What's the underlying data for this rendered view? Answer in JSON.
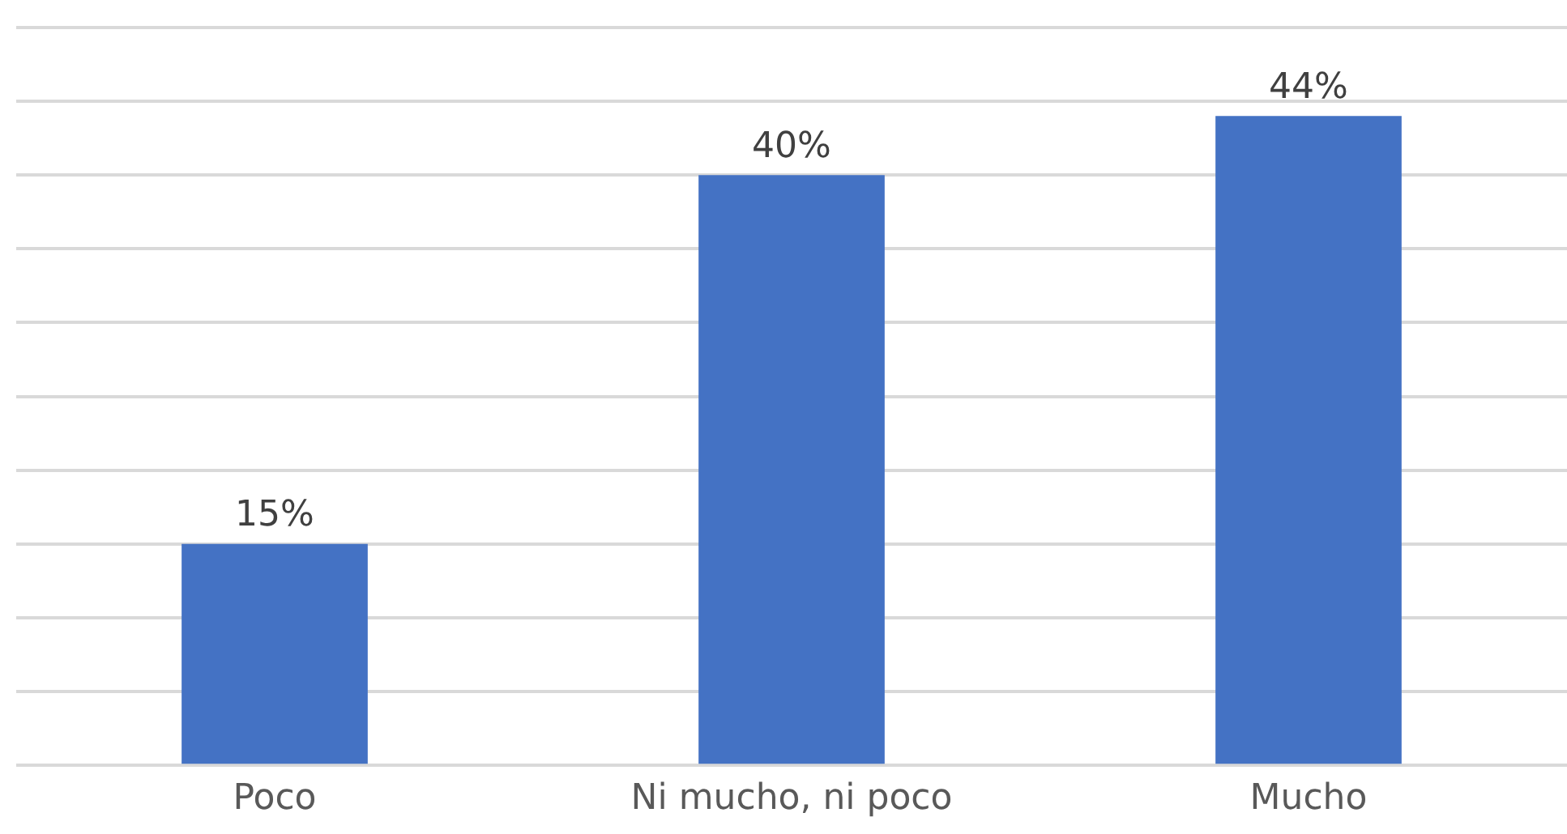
{
  "chart_data": {
    "type": "bar",
    "categories": [
      "Poco",
      "Ni mucho, ni poco",
      "Mucho"
    ],
    "values": [
      15,
      40,
      44
    ],
    "color": "#4472c4",
    "value_labels": [
      "15%",
      "40%",
      "44%"
    ],
    "ylim": [
      0,
      50
    ],
    "yticks": [
      {
        "value": 0,
        "label": null
      },
      {
        "value": 5,
        "label": null
      },
      {
        "value": 10,
        "label": null
      },
      {
        "value": 15,
        "label": null
      },
      {
        "value": 20,
        "label": null
      },
      {
        "value": 25,
        "label": null
      },
      {
        "value": 30,
        "label": null
      },
      {
        "value": 35,
        "label": null
      },
      {
        "value": 40,
        "label": null
      },
      {
        "value": 45,
        "label": null
      },
      {
        "value": 50,
        "label": null
      }
    ],
    "grid": "y",
    "tick_labels": "x"
  }
}
